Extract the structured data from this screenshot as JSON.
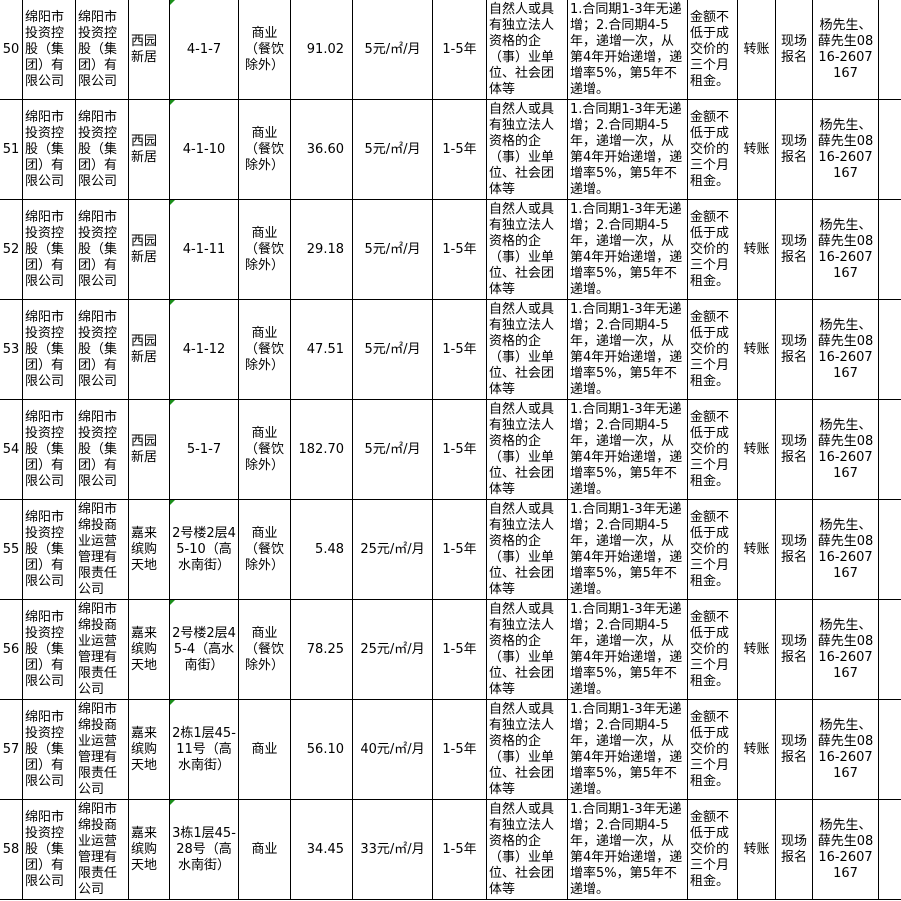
{
  "common": {
    "qualification": "自然人或具有独立法人资格的企（事）业单位、社会团体等",
    "increase": "1.合同期1-3年无递增；2.合同期4-5年，递增一次，从第4年开始递增，递增率5%，第5年不递增。",
    "deposit": "金额不低于成交价的三个月租金。",
    "payment": "转账",
    "registration": "现场报名",
    "contact": "杨先生、薛先生0816-2607167",
    "term": "1-5年"
  },
  "rows": [
    {
      "no": "50",
      "owner": "绵阳市投资控股（集团）有限公司",
      "operator": "绵阳市投资控股（集团）有限公司",
      "project": "西园新居",
      "unit": "4-1-7",
      "use": "商业（餐饮除外）",
      "area": "91.02",
      "price": "5元/㎡/月"
    },
    {
      "no": "51",
      "owner": "绵阳市投资控股（集团）有限公司",
      "operator": "绵阳市投资控股（集团）有限公司",
      "project": "西园新居",
      "unit": "4-1-10",
      "use": "商业（餐饮除外）",
      "area": "36.60",
      "price": "5元/㎡/月"
    },
    {
      "no": "52",
      "owner": "绵阳市投资控股（集团）有限公司",
      "operator": "绵阳市投资控股（集团）有限公司",
      "project": "西园新居",
      "unit": "4-1-11",
      "use": "商业（餐饮除外）",
      "area": "29.18",
      "price": "5元/㎡/月"
    },
    {
      "no": "53",
      "owner": "绵阳市投资控股（集团）有限公司",
      "operator": "绵阳市投资控股（集团）有限公司",
      "project": "西园新居",
      "unit": "4-1-12",
      "use": "商业（餐饮除外）",
      "area": "47.51",
      "price": "5元/㎡/月"
    },
    {
      "no": "54",
      "owner": "绵阳市投资控股（集团）有限公司",
      "operator": "绵阳市投资控股（集团）有限公司",
      "project": "西园新居",
      "unit": "5-1-7",
      "use": "商业（餐饮除外）",
      "area": "182.70",
      "price": "5元/㎡/月"
    },
    {
      "no": "55",
      "owner": "绵阳市投资控股（集团）有限公司",
      "operator": "绵阳市绵投商业运营管理有限责任公司",
      "project": "嘉来缤购天地",
      "unit": "2号楼2层45-10（高水南街）",
      "use": "商业（餐饮除外）",
      "area": "5.48",
      "price": "25元/㎡/月"
    },
    {
      "no": "56",
      "owner": "绵阳市投资控股（集团）有限公司",
      "operator": "绵阳市绵投商业运营管理有限责任公司",
      "project": "嘉来缤购天地",
      "unit": "2号楼2层45-4（高水南街）",
      "use": "商业（餐饮除外）",
      "area": "78.25",
      "price": "25元/㎡/月"
    },
    {
      "no": "57",
      "owner": "绵阳市投资控股（集团）有限公司",
      "operator": "绵阳市绵投商业运营管理有限责任公司",
      "project": "嘉来缤购天地",
      "unit": "2栋1层45-11号（高水南街）",
      "use": "商业",
      "area": "56.10",
      "price": "40元/㎡/月"
    },
    {
      "no": "58",
      "owner": "绵阳市投资控股（集团）有限公司",
      "operator": "绵阳市绵投商业运营管理有限责任公司",
      "project": "嘉来缤购天地",
      "unit": "3栋1层45-28号（高水南街）",
      "use": "商业",
      "area": "34.45",
      "price": "33元/㎡/月"
    }
  ]
}
